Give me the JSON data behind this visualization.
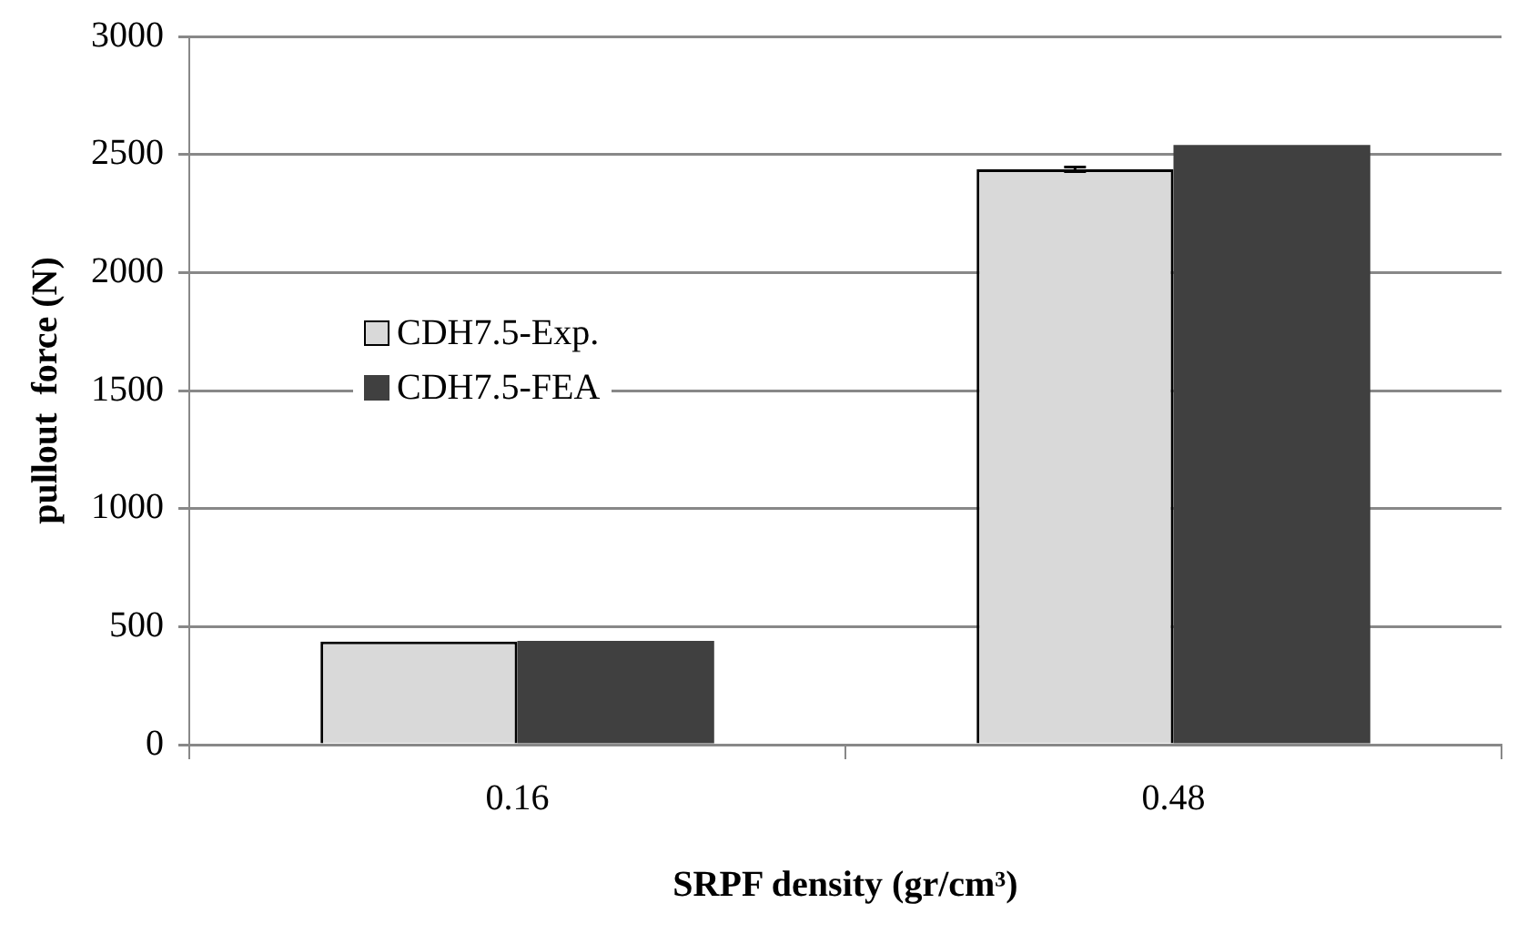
{
  "chart_data": {
    "type": "bar",
    "xlabel": "SRPF density (gr/cm³)",
    "ylabel": "pullout  force (N)",
    "categories": [
      "0.16",
      "0.48"
    ],
    "series": [
      {
        "name": "CDH7.5-Exp.",
        "color": "#d9d9d9",
        "values": [
          437,
          2437
        ],
        "errors": [
          null,
          10
        ]
      },
      {
        "name": "CDH7.5-FEA",
        "color": "#404040",
        "values": [
          440,
          2540
        ]
      }
    ],
    "ylim": [
      0,
      3000
    ],
    "yticks": [
      0,
      500,
      1000,
      1500,
      2000,
      2500,
      3000
    ],
    "grid": "y",
    "legend": "left"
  }
}
